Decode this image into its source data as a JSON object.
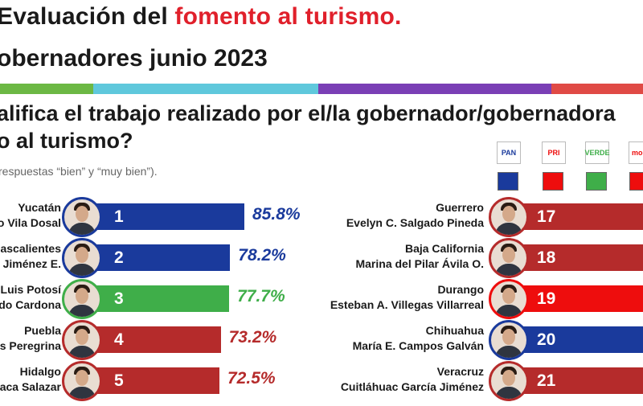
{
  "header": {
    "title_prefix": "Evaluación del ",
    "title_highlight": "fomento al turismo.",
    "subtitle": "obernadores junio 2023",
    "question_line1": "alifica el trabajo realizado por el/la gobernador/gobernadora",
    "question_line2": "o al turismo?",
    "note": "respuestas “bien” y “muy bien”)."
  },
  "colors": {
    "PAN": "#1a3a9c",
    "PRI": "#b52b2b",
    "PVEM": "#3fae49",
    "MORENA": "#ee0d0d",
    "band": [
      "#6cb844",
      "#5fc8dc",
      "#7a3fb5",
      "#e04a45"
    ]
  },
  "legend": {
    "parties": [
      {
        "code": "PAN",
        "logo_text": "PAN",
        "color": "#1a3a9c"
      },
      {
        "code": "PRI",
        "logo_text": "PRI",
        "color": "#ee0d0d"
      },
      {
        "code": "PVEM",
        "logo_text": "VERDE",
        "color": "#3fae49"
      },
      {
        "code": "MORENA",
        "logo_text": "more",
        "color": "#ee0d0d"
      }
    ]
  },
  "chart_data": {
    "type": "bar",
    "unit": "%",
    "left_column": [
      {
        "state": "Yucatán",
        "governor": "o Vila Dosal",
        "rank": "1",
        "value": 85.8,
        "label": "85.8%",
        "party": "PAN"
      },
      {
        "state": "nascalientes",
        "governor": "a Jiménez E.",
        "rank": "2",
        "value": 78.2,
        "label": "78.2%",
        "party": "PAN"
      },
      {
        "state": "n Luis Potosí",
        "governor": "do Cardona",
        "rank": "3",
        "value": 77.7,
        "label": "77.7%",
        "party": "PVEM"
      },
      {
        "state": "Puebla",
        "governor": "es Peregrina",
        "rank": "4",
        "value": 73.2,
        "label": "73.2%",
        "party": "PRI"
      },
      {
        "state": "Hidalgo",
        "governor": "naca Salazar",
        "rank": "5",
        "value": 72.5,
        "label": "72.5%",
        "party": "PRI"
      }
    ],
    "right_column": [
      {
        "state": "Guerrero",
        "governor": "Evelyn C. Salgado Pineda",
        "rank": "17",
        "party": "PRI"
      },
      {
        "state": "Baja California",
        "governor": "Marina del Pilar Ávila O.",
        "rank": "18",
        "party": "PRI"
      },
      {
        "state": "Durango",
        "governor": "Esteban A. Villegas Villarreal",
        "rank": "19",
        "party": "MORENA"
      },
      {
        "state": "Chihuahua",
        "governor": "María E. Campos Galván",
        "rank": "20",
        "party": "PAN"
      },
      {
        "state": "Veracruz",
        "governor": "Cuitláhuac García Jiménez",
        "rank": "21",
        "party": "PRI"
      }
    ]
  }
}
